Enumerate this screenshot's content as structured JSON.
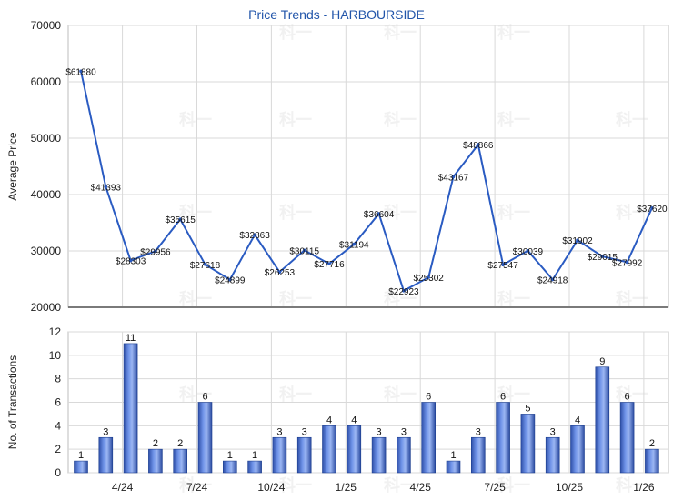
{
  "chart_data": [
    {
      "type": "line",
      "title": "Price Trends - HARBOURSIDE",
      "ylabel": "Average Price",
      "ylim": [
        20000,
        70000
      ],
      "ytick_labels": [
        "20000",
        "30000",
        "40000",
        "50000",
        "60000",
        "70000"
      ],
      "x_tick_labels": [
        "4/24",
        "7/24",
        "10/24",
        "1/25",
        "4/25",
        "7/25",
        "10/25",
        "1/26"
      ],
      "values": [
        61880,
        41393,
        28303,
        29956,
        35615,
        27618,
        24899,
        32863,
        26253,
        30115,
        27716,
        31194,
        36604,
        22923,
        25302,
        43167,
        48866,
        27547,
        30039,
        24918,
        31902,
        29015,
        27992,
        37620
      ],
      "value_labels": [
        "$61880",
        "$41393",
        "$28303",
        "$29956",
        "$35615",
        "$27618",
        "$24899",
        "$32863",
        "$26253",
        "$30115",
        "$27716",
        "$31194",
        "$36604",
        "$22923",
        "$25302",
        "$43167",
        "$48866",
        "$27547",
        "$30039",
        "$24918",
        "$31902",
        "$29015",
        "$27992",
        "$37620"
      ],
      "grid": true
    },
    {
      "type": "bar",
      "ylabel": "No. of Transactions",
      "ylim": [
        0,
        12
      ],
      "ytick_labels": [
        "0",
        "2",
        "4",
        "6",
        "8",
        "10",
        "12"
      ],
      "values": [
        1,
        3,
        11,
        2,
        2,
        6,
        1,
        1,
        3,
        3,
        4,
        4,
        3,
        3,
        6,
        1,
        3,
        6,
        5,
        3,
        4,
        9,
        6,
        2
      ],
      "value_labels": [
        "1",
        "3",
        "11",
        "2",
        "2",
        "6",
        "1",
        "1",
        "3",
        "3",
        "4",
        "4",
        "3",
        "3",
        "6",
        "1",
        "3",
        "6",
        "5",
        "3",
        "4",
        "9",
        "6",
        "2"
      ],
      "x_tick_labels": [
        "4/24",
        "7/24",
        "10/24",
        "1/25",
        "4/25",
        "7/25",
        "10/25",
        "1/26"
      ],
      "grid": true
    }
  ],
  "watermark_text": "科一"
}
